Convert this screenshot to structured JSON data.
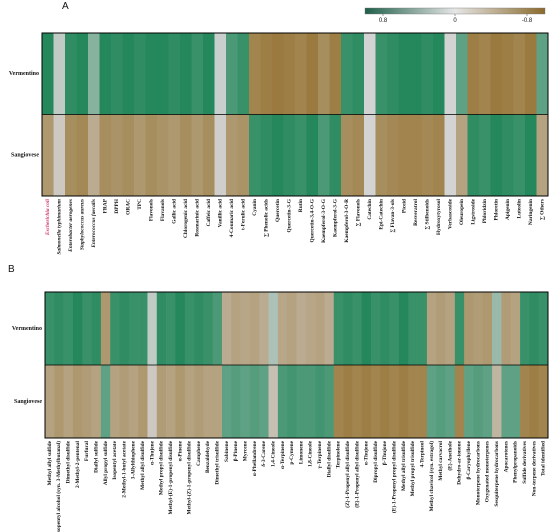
{
  "chart_data": [
    {
      "type": "heatmap",
      "title": "A",
      "rows": [
        "Vermentino",
        "Sangiovese"
      ],
      "columns": [
        "Escherichia coli",
        "Salmonella typhimurium",
        "Enterobacter aerogenes",
        "Staphylococcus aureus",
        "Enterococcus faecalis",
        "FRAP",
        "DPPH",
        "ORAC",
        "TPC",
        "Flavonols",
        "Flavanols",
        "Gallic acid",
        "Chlorogenic acid",
        "Rosmarinic acid",
        "Caffeic acid",
        "Vanillic acid",
        "4-Coumaric acid",
        "t-Ferulic acid",
        "Cyanin",
        "∑ Phenolic acids",
        "Quercetin",
        "Quercetin-3-G",
        "Rutin",
        "Quercetin-3,4-O-G",
        "Kaempferol-3-O-G",
        "Kaempferol-3-G",
        "Kaempferol-3-O-R",
        "∑ Flavonols",
        "Catechin",
        "Epi-Catechin",
        "∑ Flavan-3-ols",
        "Piceid",
        "Resveratrol",
        "∑ Stilbenoids",
        "Hydroxytyrosol",
        "Verbascoside",
        "Oleuropein",
        "Ligstroside",
        "Phloridzin",
        "Phloretin",
        "Apigenin",
        "Luteolin",
        "Naringenin",
        "∑ Others"
      ],
      "values": [
        [
          0.9,
          0.1,
          0.85,
          0.9,
          0.4,
          0.9,
          0.85,
          0.9,
          0.85,
          0.9,
          0.9,
          0.85,
          0.9,
          0.8,
          0.9,
          0.05,
          0.7,
          0.8,
          -0.8,
          -0.85,
          -0.9,
          -0.85,
          -0.8,
          -0.9,
          -0.7,
          -0.85,
          0.8,
          0.85,
          0.0,
          0.8,
          0.85,
          0.9,
          0.9,
          0.85,
          0.9,
          0.0,
          0.6,
          -0.85,
          -0.8,
          -0.9,
          -0.85,
          -0.8,
          -0.9,
          0.6
        ],
        [
          -0.6,
          -0.1,
          -0.7,
          -0.75,
          -0.4,
          -0.7,
          -0.65,
          -0.7,
          -0.6,
          -0.7,
          -0.65,
          -0.6,
          -0.7,
          -0.6,
          -0.7,
          -0.05,
          -0.6,
          -0.65,
          0.8,
          0.85,
          0.9,
          0.85,
          0.8,
          0.9,
          0.7,
          0.85,
          -0.7,
          -0.75,
          0.0,
          -0.7,
          -0.75,
          -0.8,
          -0.8,
          -0.75,
          -0.8,
          0.0,
          -0.5,
          0.85,
          0.8,
          0.9,
          0.85,
          0.8,
          0.9,
          -0.5
        ]
      ],
      "zlim": [
        1,
        -1
      ],
      "colorscale": [
        "#12804f",
        "#d3d3d3",
        "#94702d"
      ],
      "colorbar_ticks": [
        0.8,
        0,
        -0.8
      ]
    },
    {
      "type": "heatmap",
      "title": "B",
      "rows": [
        "Vermentino",
        "Sangiovese"
      ],
      "columns": [
        "Methyl allyl sulfide",
        "Isopentyl alcohol (syn. 3-Methylbutanal)",
        "Dimethyl disulfide",
        "2-Methyl-2-pentenal",
        "Furfural",
        "Diallyl sulfide",
        "Allyl propyl sulfide",
        "Isopentyl acetate",
        "2-Methyl-1-butyl acetate",
        "3-Allylthiophene",
        "Methyl allyl disulfide",
        "α-Thujene",
        "Methyl propyl disulfide",
        "Methyl-(E)-1-propenyl disulfide",
        "α-Pinene",
        "Methyl-(Z)-1-propenyl disulfide",
        "Camphene",
        "Benzaldehyde",
        "Dimethyl trisulfide",
        "Sabinene",
        "β-Pinene",
        "Myrcene",
        "α-Phellandrene",
        "δ-3-Carene",
        "1,4-Cineole",
        "α-Terpinene",
        "p-Cymene",
        "Limonene",
        "1,8-Cineole",
        "γ-Terpinene",
        "Diallyl disulfide",
        "Terpinolene",
        "(Z)-1-Propenyl allyl disulfide",
        "(E)-1-Propenyl allyl disulfide",
        "α-Thujone",
        "Dipropyl disulfide",
        "β-Thujone",
        "(E)-1-Propenyl propyl disulfide",
        "Methyl allyl trisulfide",
        "Methyl propyl trisulfide",
        "4-Terpineol",
        "Methyl chavicol (syn. estragol)",
        "Methyl carvacrol",
        "(E)-Anethole",
        "Dehydro-ar-ionone",
        "β-Caryophyllene",
        "Monoterpene hydrocarbons",
        "Oxygenated monoterpenes",
        "Sesquiterpene hydrocarbons",
        "Apocarotenes",
        "Phenylpropanoids",
        "Sulfide derivatives",
        "Non-terpene derivatives",
        "Total identified"
      ],
      "values": [
        [
          0.8,
          0.85,
          0.8,
          0.9,
          0.8,
          0.85,
          -0.6,
          0.8,
          0.85,
          0.8,
          0.8,
          0.1,
          0.85,
          0.8,
          0.9,
          0.8,
          0.85,
          0.8,
          0.7,
          -0.4,
          -0.5,
          -0.45,
          -0.5,
          -0.4,
          0.2,
          -0.45,
          -0.5,
          -0.4,
          -0.45,
          -0.5,
          -0.4,
          0.8,
          0.85,
          0.8,
          0.9,
          0.8,
          0.85,
          0.8,
          0.9,
          0.8,
          0.8,
          -0.5,
          -0.55,
          -0.5,
          0.8,
          -0.6,
          -0.55,
          -0.6,
          0.3,
          -0.55,
          -0.5,
          0.8,
          0.85,
          0.8
        ],
        [
          -0.5,
          -0.6,
          -0.5,
          -0.6,
          -0.55,
          -0.5,
          0.6,
          -0.5,
          -0.55,
          -0.5,
          -0.6,
          -0.1,
          -0.55,
          -0.5,
          -0.6,
          -0.5,
          -0.55,
          -0.5,
          -0.5,
          0.6,
          0.65,
          0.6,
          0.65,
          0.6,
          -0.2,
          0.7,
          0.75,
          0.7,
          0.7,
          0.75,
          0.7,
          -0.8,
          -0.85,
          -0.8,
          -0.85,
          -0.8,
          -0.85,
          -0.8,
          -0.85,
          -0.8,
          -0.8,
          0.6,
          0.65,
          0.6,
          -0.8,
          0.6,
          0.65,
          0.6,
          -0.3,
          0.6,
          0.6,
          -0.8,
          -0.85,
          -0.8
        ]
      ],
      "zlim": [
        1,
        -1
      ],
      "colorscale": [
        "#12804f",
        "#d3d3d3",
        "#94702d"
      ]
    }
  ]
}
